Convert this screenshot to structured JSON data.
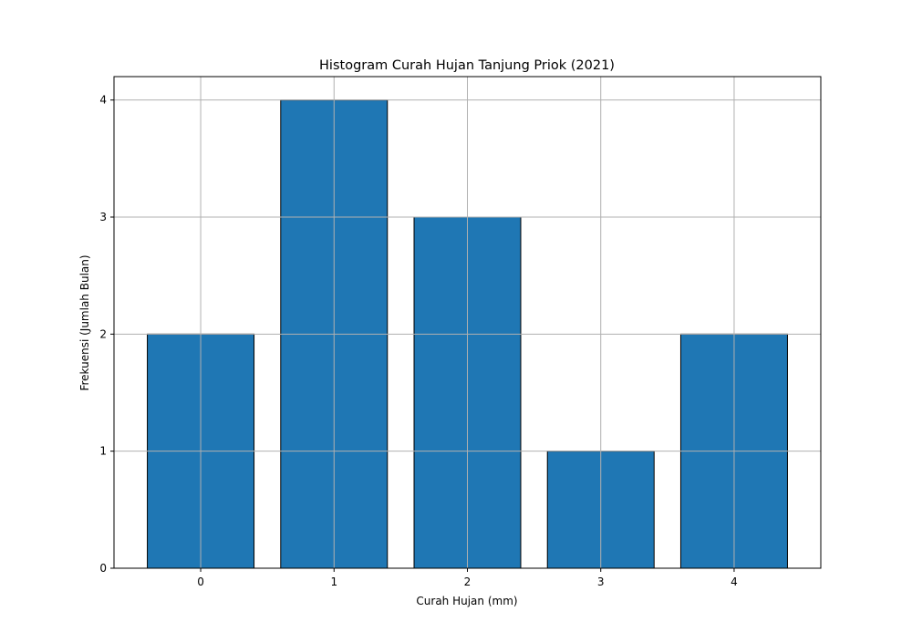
{
  "chart_data": {
    "type": "bar",
    "title": "Histogram Curah Hujan Tanjung Priok (2021)",
    "xlabel": "Curah Hujan (mm)",
    "ylabel": "Frekuensi (Jumlah Bulan)",
    "categories": [
      "0",
      "1",
      "2",
      "3",
      "4"
    ],
    "values": [
      2,
      4,
      3,
      1,
      2
    ],
    "ylim": [
      0,
      4.2
    ],
    "yticks": [
      "0",
      "1",
      "2",
      "3",
      "4"
    ],
    "grid": true,
    "legend": "none",
    "bar_color": "#1f77b4",
    "edge_color": "#000000",
    "grid_color": "#b0b0b0"
  }
}
